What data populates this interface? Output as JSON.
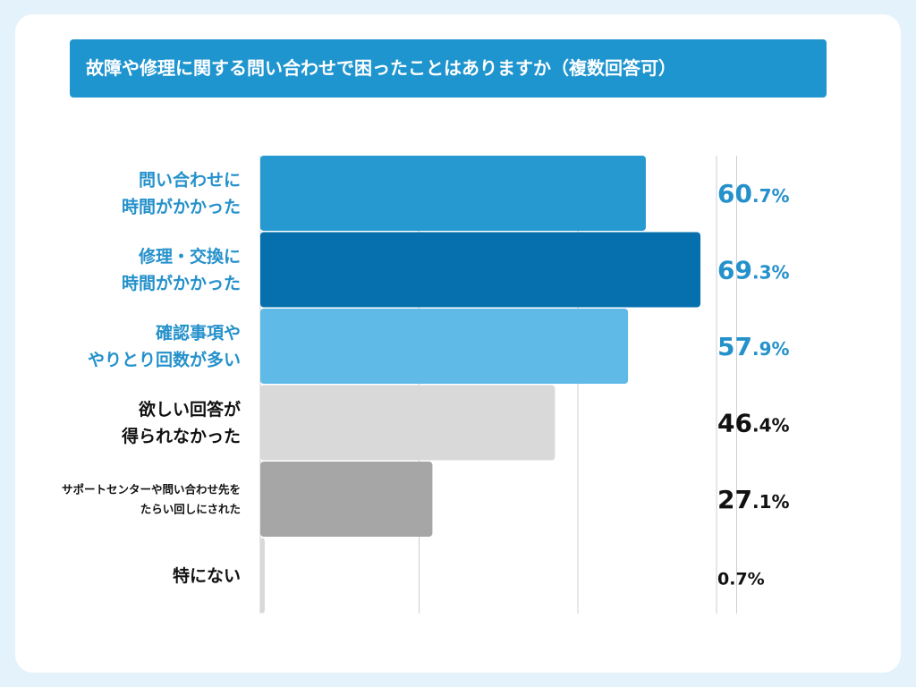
{
  "title": "故障や修理に関する問い合わせで困ったことはありますか（複数回答可）",
  "chart_data": {
    "type": "bar",
    "orientation": "horizontal",
    "title": "故障や修理に関する問い合わせで困ったことはありますか（複数回答可）",
    "categories": [
      [
        "問い合わせに",
        "時間がかかった"
      ],
      [
        "修理・交換に",
        "時間がかかった"
      ],
      [
        "確認事項や",
        "やりとり回数が多い"
      ],
      [
        "欲しい回答が",
        "得られなかった"
      ],
      [
        "サポートセンターや問い合わせ先を",
        "たらい回しにされた"
      ],
      [
        "特にない"
      ]
    ],
    "values": [
      60.7,
      69.3,
      57.9,
      46.4,
      27.1,
      0.7
    ],
    "value_labels": [
      {
        "num": "60",
        "dec": ".7%"
      },
      {
        "num": "69",
        "dec": ".3%"
      },
      {
        "num": "57",
        "dec": ".9%"
      },
      {
        "num": "46",
        "dec": ".4%"
      },
      {
        "num": "27",
        "dec": ".1%"
      },
      {
        "num": "0",
        "dec": ".7%"
      }
    ],
    "bar_colors": [
      "#2699d0",
      "#0670ae",
      "#5fbae8",
      "#d9d9d9",
      "#a6a6a6",
      "#d9d9d9"
    ],
    "label_colors": [
      "#2591cb",
      "#2591cb",
      "#2591cb",
      "#111111",
      "#111111",
      "#111111"
    ],
    "xlim": [
      0,
      100
    ],
    "grid": true
  }
}
